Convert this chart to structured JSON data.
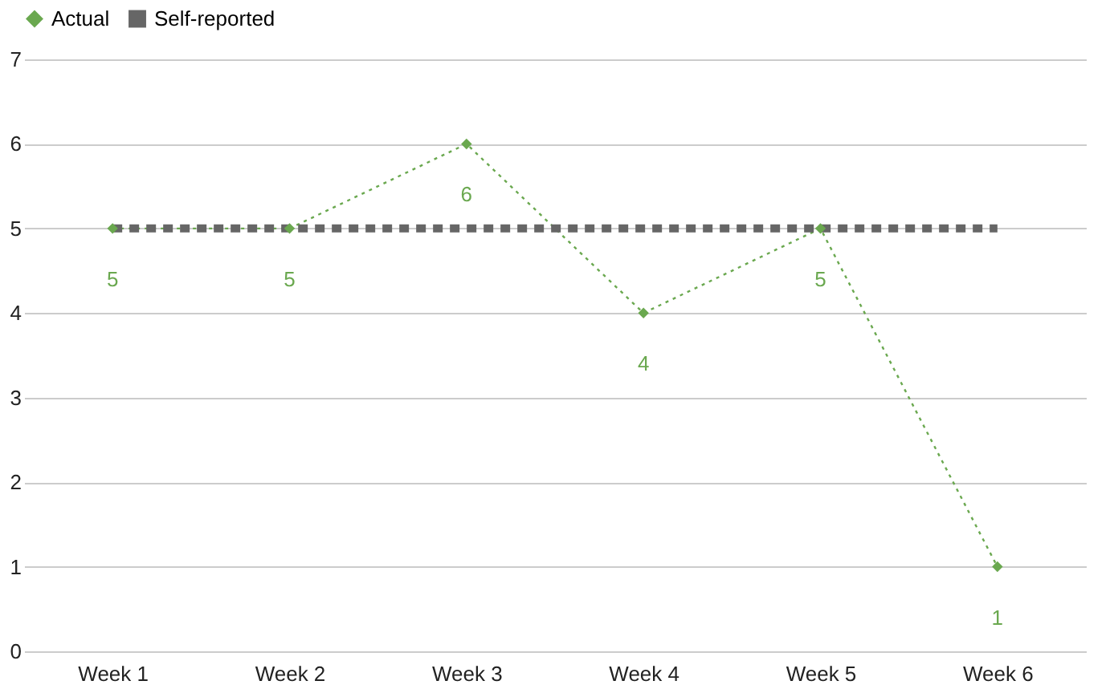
{
  "chart_data": {
    "type": "line",
    "categories": [
      "Week 1",
      "Week 2",
      "Week 3",
      "Week 4",
      "Week 5",
      "Week 6"
    ],
    "series": [
      {
        "name": "Actual",
        "color": "#6aa84f",
        "values": [
          5,
          5,
          6,
          4,
          5,
          1
        ],
        "marker": "diamond",
        "line_style": "dotted",
        "data_labels": true
      },
      {
        "name": "Self-reported",
        "color": "#666666",
        "values": [
          5,
          5,
          5,
          5,
          5,
          5
        ],
        "marker": "none",
        "line_style": "dotted"
      }
    ],
    "ylim": [
      0,
      7
    ],
    "yticks": [
      0,
      1,
      2,
      3,
      4,
      5,
      6,
      7
    ],
    "grid": "y",
    "legend": "top"
  }
}
